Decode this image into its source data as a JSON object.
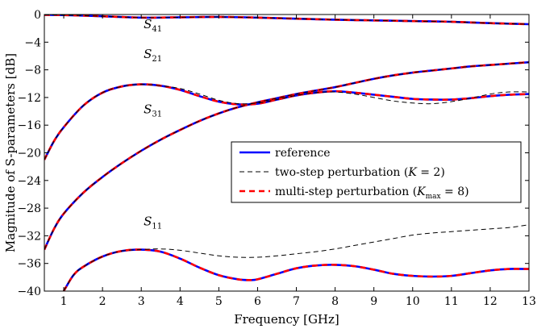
{
  "chart_data": {
    "type": "line",
    "xlabel": "Frequency [GHz]",
    "ylabel": "Magnitude of S-parameters [dB]",
    "xlim": [
      0.5,
      13
    ],
    "ylim": [
      -40,
      0
    ],
    "xticks": [
      1,
      2,
      3,
      4,
      5,
      6,
      7,
      8,
      9,
      10,
      11,
      12,
      13
    ],
    "yticks": [
      0,
      -4,
      -8,
      -12,
      -16,
      -20,
      -24,
      -28,
      -32,
      -36,
      -40
    ],
    "grid": false,
    "legend_position": "center-right",
    "legend": [
      {
        "key": "reference",
        "text": "reference",
        "color": "#0000ff",
        "dash": "solid"
      },
      {
        "key": "two_step",
        "text": "two-step perturbation (",
        "math_main": "K",
        "math_sub": "",
        "math_tail": " = 2)",
        "color": "#000000",
        "dash": "dashed"
      },
      {
        "key": "multi_step",
        "text": "multi-step perturbation (",
        "math_main": "K",
        "math_sub": "max",
        "math_tail": " = 8)",
        "color": "#ff0000",
        "dash": "dashed"
      }
    ],
    "annotations": [
      {
        "main": "S",
        "sub": "41",
        "x": 3.3,
        "y": -2.0
      },
      {
        "main": "S",
        "sub": "21",
        "x": 3.3,
        "y": -6.3
      },
      {
        "main": "S",
        "sub": "31",
        "x": 3.3,
        "y": -14.3
      },
      {
        "main": "S",
        "sub": "11",
        "x": 3.3,
        "y": -30.5
      }
    ],
    "series": [
      {
        "name": "S41 reference",
        "style": "reference",
        "x": [
          0.5,
          1,
          2,
          3,
          4,
          5,
          6,
          7,
          8,
          9,
          10,
          11,
          12,
          13
        ],
        "y": [
          -0.05,
          -0.08,
          -0.25,
          -0.45,
          -0.4,
          -0.35,
          -0.45,
          -0.6,
          -0.75,
          -0.85,
          -0.95,
          -1.05,
          -1.25,
          -1.4
        ]
      },
      {
        "name": "S41 multi-step",
        "style": "multi_step",
        "x": [
          0.5,
          1,
          2,
          3,
          4,
          5,
          6,
          7,
          8,
          9,
          10,
          11,
          12,
          13
        ],
        "y": [
          -0.05,
          -0.08,
          -0.25,
          -0.45,
          -0.4,
          -0.35,
          -0.45,
          -0.6,
          -0.75,
          -0.85,
          -0.95,
          -1.05,
          -1.25,
          -1.4
        ]
      },
      {
        "name": "S41 two-step",
        "style": "two_step",
        "x": [
          0.5,
          1,
          2,
          3,
          4,
          5,
          6,
          7,
          8,
          9,
          10,
          11,
          12,
          13
        ],
        "y": [
          -0.05,
          -0.08,
          -0.25,
          -0.45,
          -0.4,
          -0.35,
          -0.45,
          -0.6,
          -0.75,
          -0.85,
          -0.95,
          -1.05,
          -1.25,
          -1.4
        ]
      },
      {
        "name": "S21 reference",
        "style": "reference",
        "x": [
          0.5,
          0.75,
          1,
          1.5,
          2,
          2.5,
          3,
          3.5,
          4,
          4.5,
          5,
          5.5,
          6,
          6.5,
          7,
          7.5,
          8,
          8.5,
          9,
          9.5,
          10,
          10.5,
          11,
          11.5,
          12,
          12.5,
          13
        ],
        "y": [
          -21.0,
          -18.3,
          -16.3,
          -13.2,
          -11.3,
          -10.4,
          -10.1,
          -10.3,
          -10.9,
          -11.8,
          -12.6,
          -13.0,
          -12.9,
          -12.3,
          -11.7,
          -11.3,
          -11.1,
          -11.3,
          -11.6,
          -11.9,
          -12.2,
          -12.3,
          -12.3,
          -12.1,
          -11.8,
          -11.6,
          -11.5
        ]
      },
      {
        "name": "S21 multi-step",
        "style": "multi_step",
        "x": [
          0.5,
          0.75,
          1,
          1.5,
          2,
          2.5,
          3,
          3.5,
          4,
          4.5,
          5,
          5.5,
          6,
          6.5,
          7,
          7.5,
          8,
          8.5,
          9,
          9.5,
          10,
          10.5,
          11,
          11.5,
          12,
          12.5,
          13
        ],
        "y": [
          -21.0,
          -18.3,
          -16.3,
          -13.2,
          -11.3,
          -10.4,
          -10.1,
          -10.3,
          -10.9,
          -11.8,
          -12.6,
          -13.0,
          -12.9,
          -12.3,
          -11.7,
          -11.3,
          -11.1,
          -11.3,
          -11.6,
          -11.9,
          -12.2,
          -12.3,
          -12.3,
          -12.1,
          -11.8,
          -11.6,
          -11.5
        ]
      },
      {
        "name": "S21 two-step",
        "style": "two_step",
        "x": [
          0.5,
          0.75,
          1,
          1.5,
          2,
          2.5,
          3,
          3.5,
          4,
          4.5,
          5,
          5.5,
          6,
          6.5,
          7,
          7.5,
          8,
          8.5,
          9,
          9.5,
          10,
          10.5,
          11,
          11.5,
          12,
          12.5,
          13
        ],
        "y": [
          -21.0,
          -18.3,
          -16.3,
          -13.2,
          -11.3,
          -10.4,
          -10.1,
          -10.3,
          -10.7,
          -11.5,
          -12.4,
          -12.9,
          -12.8,
          -12.3,
          -11.7,
          -11.3,
          -11.2,
          -11.5,
          -12.0,
          -12.5,
          -12.8,
          -12.9,
          -12.6,
          -12.1,
          -11.5,
          -11.2,
          -11.2
        ]
      },
      {
        "name": "S31 reference",
        "style": "reference",
        "x": [
          0.5,
          0.75,
          1,
          1.5,
          2,
          2.5,
          3,
          3.5,
          4,
          4.5,
          5,
          5.5,
          6,
          6.5,
          7,
          7.5,
          8,
          8.5,
          9,
          9.5,
          10,
          10.5,
          11,
          11.5,
          12,
          12.5,
          13
        ],
        "y": [
          -34.0,
          -31.0,
          -28.8,
          -25.8,
          -23.5,
          -21.5,
          -19.7,
          -18.1,
          -16.7,
          -15.4,
          -14.3,
          -13.4,
          -12.7,
          -12.1,
          -11.5,
          -11.0,
          -10.5,
          -9.9,
          -9.3,
          -8.8,
          -8.4,
          -8.1,
          -7.8,
          -7.5,
          -7.3,
          -7.1,
          -6.9
        ]
      },
      {
        "name": "S31 multi-step",
        "style": "multi_step",
        "x": [
          0.5,
          0.75,
          1,
          1.5,
          2,
          2.5,
          3,
          3.5,
          4,
          4.5,
          5,
          5.5,
          6,
          6.5,
          7,
          7.5,
          8,
          8.5,
          9,
          9.5,
          10,
          10.5,
          11,
          11.5,
          12,
          12.5,
          13
        ],
        "y": [
          -34.0,
          -31.0,
          -28.8,
          -25.8,
          -23.5,
          -21.5,
          -19.7,
          -18.1,
          -16.7,
          -15.4,
          -14.3,
          -13.4,
          -12.7,
          -12.1,
          -11.5,
          -11.0,
          -10.5,
          -9.9,
          -9.3,
          -8.8,
          -8.4,
          -8.1,
          -7.8,
          -7.5,
          -7.3,
          -7.1,
          -6.9
        ]
      },
      {
        "name": "S31 two-step",
        "style": "two_step",
        "x": [
          0.5,
          0.75,
          1,
          1.5,
          2,
          2.5,
          3,
          3.5,
          4,
          4.5,
          5,
          5.5,
          6,
          6.5,
          7,
          7.5,
          8,
          8.5,
          9,
          9.5,
          10,
          10.5,
          11,
          11.5,
          12,
          12.5,
          13
        ],
        "y": [
          -34.0,
          -31.0,
          -28.8,
          -25.8,
          -23.5,
          -21.5,
          -19.7,
          -18.1,
          -16.7,
          -15.4,
          -14.3,
          -13.4,
          -12.7,
          -12.1,
          -11.5,
          -11.0,
          -10.5,
          -9.9,
          -9.3,
          -8.8,
          -8.4,
          -8.1,
          -7.8,
          -7.5,
          -7.3,
          -7.1,
          -6.9
        ]
      },
      {
        "name": "S11 reference",
        "style": "reference",
        "x": [
          1.0,
          1.25,
          1.5,
          2,
          2.5,
          3,
          3.5,
          4,
          4.5,
          5,
          5.5,
          5.8,
          6,
          6.5,
          7,
          7.5,
          8,
          8.5,
          9,
          9.5,
          10,
          10.5,
          11,
          11.5,
          12,
          12.5,
          13
        ],
        "y": [
          -40.0,
          -37.7,
          -36.5,
          -35.0,
          -34.2,
          -34.0,
          -34.3,
          -35.3,
          -36.6,
          -37.7,
          -38.3,
          -38.4,
          -38.3,
          -37.5,
          -36.7,
          -36.3,
          -36.2,
          -36.4,
          -36.9,
          -37.5,
          -37.8,
          -37.9,
          -37.8,
          -37.4,
          -37.0,
          -36.8,
          -36.8
        ]
      },
      {
        "name": "S11 multi-step",
        "style": "multi_step",
        "x": [
          1.0,
          1.25,
          1.5,
          2,
          2.5,
          3,
          3.5,
          4,
          4.5,
          5,
          5.5,
          5.8,
          6,
          6.5,
          7,
          7.5,
          8,
          8.5,
          9,
          9.5,
          10,
          10.5,
          11,
          11.5,
          12,
          12.5,
          13
        ],
        "y": [
          -40.0,
          -37.7,
          -36.5,
          -35.0,
          -34.2,
          -34.0,
          -34.3,
          -35.3,
          -36.6,
          -37.7,
          -38.3,
          -38.4,
          -38.3,
          -37.5,
          -36.7,
          -36.3,
          -36.2,
          -36.4,
          -36.9,
          -37.5,
          -37.8,
          -37.9,
          -37.8,
          -37.4,
          -37.0,
          -36.8,
          -36.8
        ]
      },
      {
        "name": "S11 two-step",
        "style": "two_step",
        "x": [
          1.0,
          1.25,
          1.5,
          2,
          2.5,
          3,
          3.5,
          4,
          4.5,
          5,
          5.5,
          6,
          6.5,
          7,
          7.5,
          8,
          8.5,
          9,
          9.5,
          10,
          10.5,
          11,
          11.5,
          12,
          12.5,
          13
        ],
        "y": [
          -40.0,
          -37.7,
          -36.5,
          -35.0,
          -34.2,
          -34.0,
          -33.9,
          -34.1,
          -34.5,
          -34.9,
          -35.1,
          -35.1,
          -34.9,
          -34.6,
          -34.3,
          -33.9,
          -33.4,
          -32.9,
          -32.4,
          -31.9,
          -31.6,
          -31.4,
          -31.2,
          -31.0,
          -30.8,
          -30.4
        ]
      }
    ]
  }
}
